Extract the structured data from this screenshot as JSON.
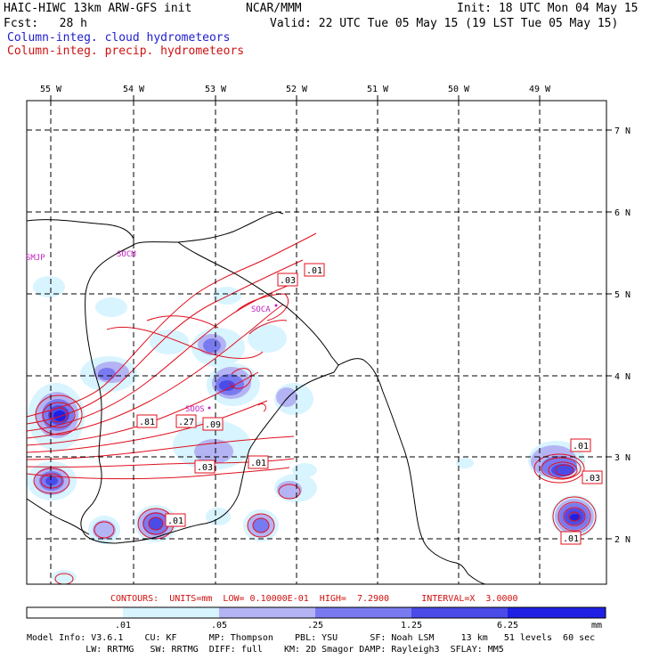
{
  "header": {
    "model_title": "HAIC-HIWC 13km ARW-GFS init",
    "org": "NCAR/MMM",
    "init": "Init: 18 UTC Mon 04 May 15",
    "fcst": "Fcst:   28 h",
    "valid": "Valid: 22 UTC Tue 05 May 15 (19 LST Tue 05 May 15)",
    "legend_cloud": "Column-integ. cloud hydrometeors",
    "legend_precip": "Column-integ. precip. hydrometeors"
  },
  "colors": {
    "cloud_levels": [
      "#d8f4ff",
      "#b4b4f4",
      "#7a7af0",
      "#4b4be8",
      "#2020e4"
    ],
    "precip_contour": "#e0101e",
    "station_label": "#c020c0",
    "grid": "#000000"
  },
  "map": {
    "lon_labels": [
      "55 W",
      "54 W",
      "53 W",
      "52 W",
      "51 W",
      "50 W",
      "49 W"
    ],
    "lat_labels": [
      "7 N",
      "6 N",
      "5 N",
      "4 N",
      "3 N",
      "2 N"
    ],
    "stations": [
      "SMJP",
      "SOCM",
      "SOCA",
      "SOOS"
    ],
    "contour_labels": [
      ".01",
      ".03",
      ".81",
      ".27",
      ".09",
      ".03",
      ".01",
      ".01",
      ".01",
      ".03",
      ".01"
    ]
  },
  "contour_info": "CONTOURS:  UNITS=mm  LOW= 0.10000E-01  HIGH=  7.2900      INTERVAL=X  3.0000",
  "colorbar": {
    "ticks": [
      ".01",
      ".05",
      ".25",
      "1.25",
      "6.25"
    ],
    "unit": "mm"
  },
  "footer": {
    "line1": "Model Info: V3.6.1    CU: KF      MP: Thompson    PBL: YSU      SF: Noah LSM     13 km   51 levels  60 sec",
    "line2": "           LW: RRTMG   SW: RRTMG  DIFF: full    KM: 2D Smagor DAMP: Rayleigh3  SFLAY: MM5"
  }
}
